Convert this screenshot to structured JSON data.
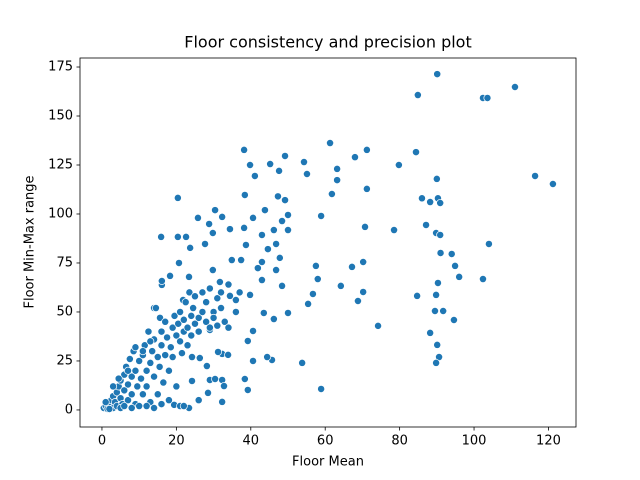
{
  "chart_data": {
    "type": "scatter",
    "title": "Floor consistency and precision plot",
    "x_label": "Floor Mean",
    "y_label": "Floor Min-Max range",
    "xlim": [
      -5.9,
      127.4
    ],
    "ylim": [
      -8.7,
      179.6
    ],
    "xticks": [
      0,
      20,
      40,
      60,
      80,
      100,
      120
    ],
    "yticks": [
      0,
      25,
      50,
      75,
      100,
      125,
      150,
      175
    ],
    "color": "#1f77b4",
    "x": [
      90.1,
      84.9,
      102.4,
      103.6,
      111,
      116.4,
      121.2,
      61.3,
      84.4,
      71.2,
      38.2,
      68,
      49.2,
      79.8,
      45.2,
      54.3,
      39.8,
      47.6,
      63.2,
      55.1,
      41.1,
      63.2,
      71.2,
      61.8,
      38.4,
      47.3,
      20.4,
      86,
      90.3,
      88.2,
      90.9,
      90,
      78.5,
      70.7,
      58.9,
      87.1,
      89.8,
      90.9,
      104,
      91,
      94,
      94.9,
      96,
      102.4,
      70.2,
      67.2,
      64.2,
      56.7,
      70.2,
      68.8,
      84.7,
      89.8,
      90.3,
      89.5,
      91.7,
      94.6,
      74.2,
      88.2,
      90.1,
      90.6,
      89.8,
      53.8,
      58.9,
      45.7,
      44.4,
      57.5,
      58,
      55.4,
      50,
      46.2,
      43.5,
      40.6,
      39.2,
      38.4,
      39.2,
      40.6,
      32.3,
      32.3,
      49.2,
      50,
      48.4,
      50,
      46.2,
      46.8,
      44.6,
      47.8,
      43,
      46.8,
      43.8,
      40.6,
      38.2,
      38.7,
      43,
      48.4,
      41.9,
      43,
      37.4,
      34.9,
      39.8,
      36,
      34.4,
      31.7,
      29.8,
      25.8,
      30.4,
      28.8,
      32.3,
      34.4,
      27.7,
      29.8,
      23.7,
      20.4,
      15.9,
      22.6,
      20.7,
      18.3,
      16.1,
      16.1,
      23.4,
      21.8,
      14,
      15.6,
      32.3,
      33.9,
      31.2,
      29,
      26.3,
      24.2,
      29,
      30.4,
      28.5,
      23.4,
      19.4,
      21,
      28.2,
      24.2,
      32.8,
      0.5,
      1,
      1.5,
      2,
      2.5,
      3,
      3,
      3.5,
      4,
      4,
      4.5,
      5,
      5,
      5.5,
      6,
      6,
      6.5,
      7,
      7,
      7.5,
      8,
      8,
      8.5,
      9,
      9,
      9.5,
      10,
      10,
      10.5,
      11,
      11,
      11.5,
      12,
      12,
      12.5,
      13,
      13,
      13.5,
      14,
      14,
      14.5,
      15,
      15,
      15.5,
      16,
      16,
      16.5,
      17,
      17,
      17.5,
      18,
      18,
      18.5,
      19,
      19,
      19.5,
      20,
      20,
      20.5,
      21,
      21,
      21.5,
      22,
      22,
      22.5,
      23,
      23,
      23.5,
      24,
      24,
      24.5,
      25,
      25,
      26,
      26,
      27,
      27,
      28,
      28,
      29,
      29,
      30,
      30,
      31,
      31,
      32,
      32,
      33,
      34,
      34,
      36,
      37,
      16,
      14,
      22,
      26,
      5,
      8,
      12,
      3,
      4.5,
      7,
      9,
      11,
      13,
      6,
      2,
      1
    ],
    "values": [
      171.4,
      160.7,
      159.2,
      159.2,
      164.8,
      119.4,
      115.3,
      136.2,
      131.6,
      132.7,
      132.7,
      129,
      129.6,
      125,
      125.5,
      126.5,
      125,
      122,
      123,
      120.4,
      119.4,
      117.3,
      112.8,
      110.2,
      109.7,
      109,
      108.2,
      108,
      108,
      106.1,
      105.6,
      117.9,
      91.8,
      93.4,
      99,
      94.4,
      90.3,
      89.3,
      84.7,
      80.1,
      79.6,
      73.5,
      67.9,
      66.8,
      75.5,
      73,
      63.3,
      59.2,
      60.2,
      55.6,
      58.2,
      58.7,
      64.8,
      50.5,
      50.5,
      45.9,
      42.9,
      39.3,
      33.2,
      27,
      24,
      24,
      10.7,
      25.5,
      27,
      73.5,
      66.8,
      54.1,
      49.5,
      46.4,
      49.5,
      40.3,
      35.2,
      15.8,
      10.2,
      25,
      15.3,
      4.1,
      107.1,
      99.5,
      96.4,
      91.8,
      91.8,
      84.7,
      82.1,
      77.6,
      75.5,
      71.4,
      102,
      98,
      92.9,
      84.2,
      89.3,
      63.3,
      72.4,
      66.3,
      76.5,
      76.5,
      58.7,
      56.1,
      58.2,
      65.3,
      71.4,
      98,
      102,
      94.9,
      98.5,
      92.3,
      84.7,
      90.3,
      82.7,
      88.3,
      88.3,
      88.3,
      75,
      68.4,
      63.8,
      65.8,
      67.9,
      56.1,
      52,
      47,
      28.6,
      28.1,
      29.6,
      40.8,
      26.5,
      14.8,
      15.3,
      15.8,
      8.7,
      1,
      2.6,
      2,
      22.4,
      27,
      12.2,
      1,
      2,
      0.5,
      3,
      5,
      1,
      7,
      4,
      9,
      2,
      12,
      6,
      15,
      3,
      10,
      18,
      22,
      5,
      13,
      26,
      8,
      17,
      30,
      3,
      20,
      12,
      25,
      2,
      16,
      28,
      8,
      33,
      20,
      12,
      40,
      24,
      4,
      30,
      17,
      36,
      52,
      27,
      8,
      22,
      40,
      33,
      14,
      28,
      45,
      37,
      20,
      5,
      32,
      42,
      27,
      48,
      38,
      12,
      44,
      35,
      50,
      29,
      46,
      40,
      55,
      42,
      33,
      60,
      48,
      38,
      52,
      44,
      58,
      47,
      40,
      50,
      60,
      45,
      55,
      42,
      62,
      50,
      47,
      57,
      43,
      60,
      52,
      45,
      64,
      42,
      50,
      60,
      3,
      1,
      2,
      5,
      1,
      1,
      2,
      12,
      16,
      20,
      32,
      30,
      35,
      2,
      0.5,
      4
    ]
  }
}
